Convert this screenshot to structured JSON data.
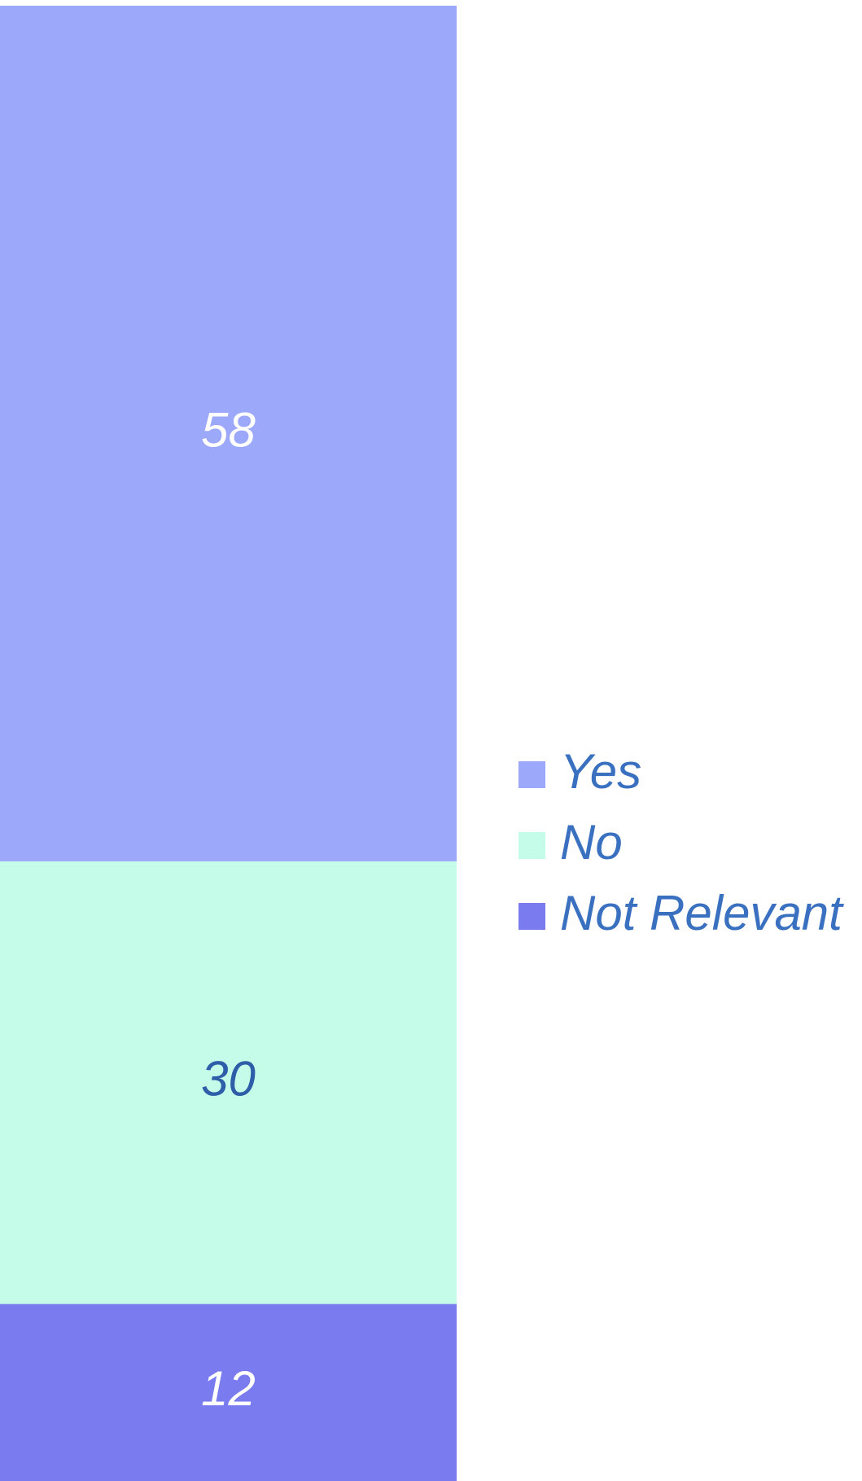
{
  "chart_data": {
    "type": "stacked_bar",
    "categories": [
      null
    ],
    "series": [
      {
        "name": "Yes",
        "color": "#9ca8f9",
        "label_color": "#ffffff",
        "values": [
          58
        ]
      },
      {
        "name": "No",
        "color": "#c5fce9",
        "label_color": "#2e5ea8",
        "values": [
          30
        ]
      },
      {
        "name": "Not Relevant",
        "color": "#7b7bf0",
        "label_color": "#ffffff",
        "values": [
          12
        ]
      }
    ],
    "ylim": [
      0,
      100
    ],
    "legend": "right"
  }
}
